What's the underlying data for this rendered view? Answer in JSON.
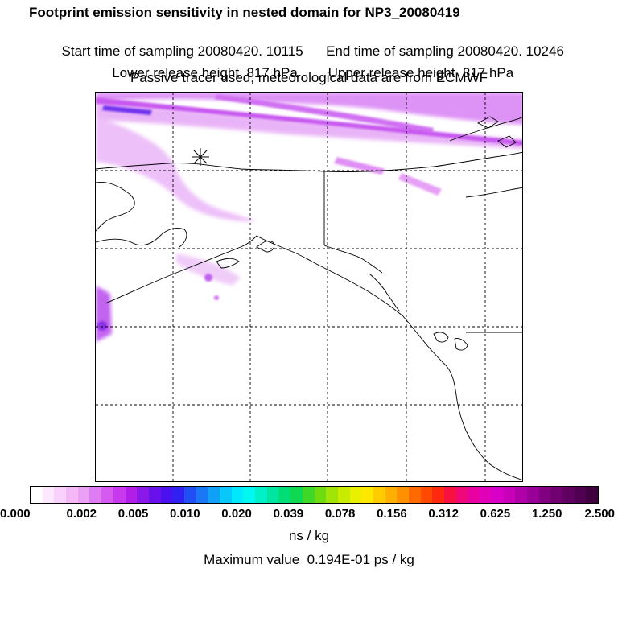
{
  "header": {
    "title": "Footprint emission sensitivity in nested domain for NP3_20080419",
    "start_time_label": "Start time of sampling 20080420. 10115",
    "end_time_label": "End time of sampling 20080420. 10246",
    "lower_release_label": "Lower release height  817 hPa",
    "upper_release_label": "Upper release height  817 hPa",
    "tracer_note": "Passive tracer used, meteorological data are from ECMWF"
  },
  "map": {
    "receptor_marker": "star-marker",
    "grid": "dashed",
    "coastline_color": "#000000"
  },
  "colorbar": {
    "ticks": [
      "0.000",
      "0.002",
      "0.005",
      "0.010",
      "0.020",
      "0.039",
      "0.078",
      "0.156",
      "0.312",
      "0.625",
      "1.250",
      "2.500"
    ],
    "colors": [
      "#ffffff",
      "#fde8fd",
      "#f9d2fb",
      "#f4b8f7",
      "#eaa0f4",
      "#e07cf2",
      "#d45af0",
      "#c838ee",
      "#b01ee8",
      "#8a18e8",
      "#6a10ea",
      "#4a10ee",
      "#3020f2",
      "#2050f4",
      "#1a78f6",
      "#10a0f8",
      "#08c8fa",
      "#00e8fc",
      "#00f8f0",
      "#00f0c8",
      "#00e6a0",
      "#00de78",
      "#10d850",
      "#40d828",
      "#70dc10",
      "#a0e408",
      "#c8ec00",
      "#e8f000",
      "#ffe800",
      "#ffcc00",
      "#ffb000",
      "#ff9000",
      "#ff6a00",
      "#ff4800",
      "#ff2810",
      "#f81040",
      "#f00878",
      "#e800a0",
      "#e000b8",
      "#d800c8",
      "#c800b8",
      "#b000a8",
      "#980098",
      "#800080",
      "#700070",
      "#600060",
      "#500050",
      "#400040"
    ],
    "units": "ns / kg",
    "max_value_label": "Maximum value  0.194E-01 ps / kg"
  }
}
